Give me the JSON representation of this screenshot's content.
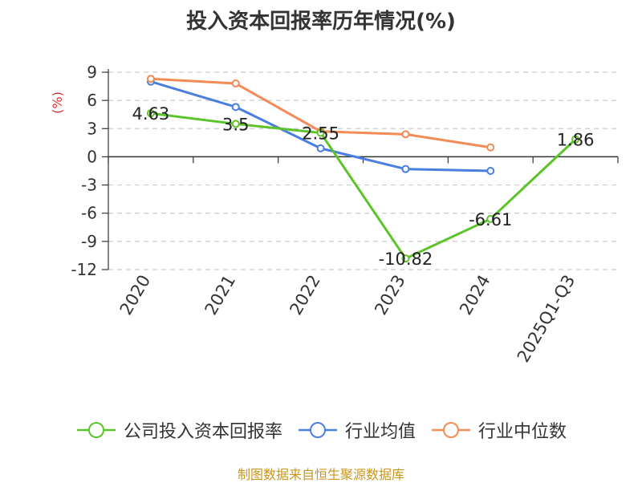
{
  "chart_data": {
    "type": "line",
    "title": "投入资本回报率历年情况(%)",
    "ylabel": "(%)",
    "categories": [
      "2020",
      "2021",
      "2022",
      "2023",
      "2024",
      "2025Q1-Q3"
    ],
    "yticks": [
      9,
      6,
      3,
      0,
      -3,
      -6,
      -9,
      -12
    ],
    "ylim": [
      -12,
      9
    ],
    "grid": true,
    "legend_position": "bottom",
    "series": [
      {
        "name": "公司投入资本回报率",
        "color": "#5dc32a",
        "values": [
          4.63,
          3.5,
          2.55,
          -10.82,
          -6.61,
          1.86
        ],
        "labels": [
          "4.63",
          "3.5",
          "2.55",
          "-10.82",
          "-6.61",
          "1.86"
        ]
      },
      {
        "name": "行业均值",
        "color": "#4a7fe0",
        "values": [
          8.0,
          5.3,
          0.9,
          -1.3,
          -1.5,
          null
        ]
      },
      {
        "name": "行业中位数",
        "color": "#f48a56",
        "values": [
          8.3,
          7.8,
          2.7,
          2.4,
          1.0,
          null
        ]
      }
    ]
  },
  "source": {
    "text": "制图数据来自恒生聚源数据库",
    "color": "#c8961e"
  }
}
